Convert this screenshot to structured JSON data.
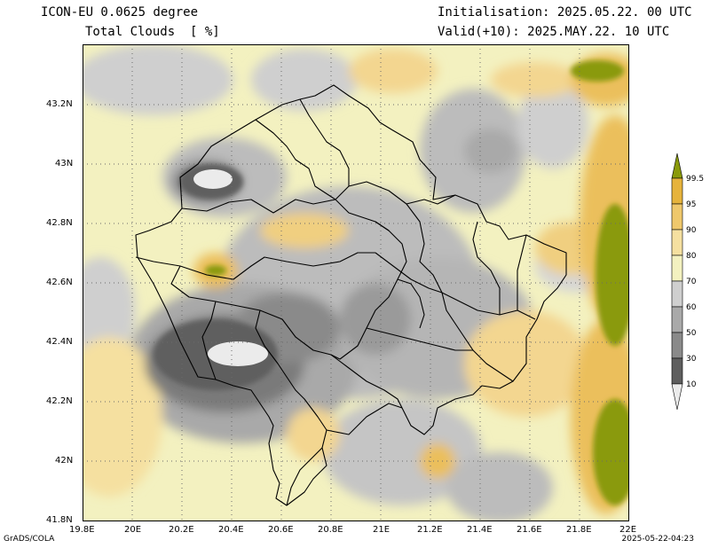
{
  "header": {
    "model_title": "ICON-EU 0.0625 degree",
    "variable": "Total Clouds  [ %]",
    "initialisation": "Initialisation: 2025.05.22. 00 UTC",
    "valid": "Valid(+10): 2025.MAY.22. 10 UTC"
  },
  "axes": {
    "lat_labels": [
      "43.2N",
      "43N",
      "42.8N",
      "42.6N",
      "42.4N",
      "42.2N",
      "42N",
      "41.8N"
    ],
    "lon_labels": [
      "19.8E",
      "20E",
      "20.2E",
      "20.4E",
      "20.6E",
      "20.8E",
      "21E",
      "21.2E",
      "21.4E",
      "21.6E",
      "21.8E",
      "22E"
    ]
  },
  "colorbar": {
    "labels": [
      "99.5",
      "95",
      "90",
      "80",
      "70",
      "60",
      "50",
      "30",
      "10"
    ],
    "colors": [
      "#8a9a0a",
      "#e6b33c",
      "#efc86c",
      "#f5e0a0",
      "#f3f1c0",
      "#cfcfcf",
      "#a9a9a9",
      "#8a8a8a",
      "#5e5e5e",
      "#ebebeb"
    ]
  },
  "footer": {
    "left": "GrADS/COLA",
    "right": "2025-05-22-04:23"
  }
}
